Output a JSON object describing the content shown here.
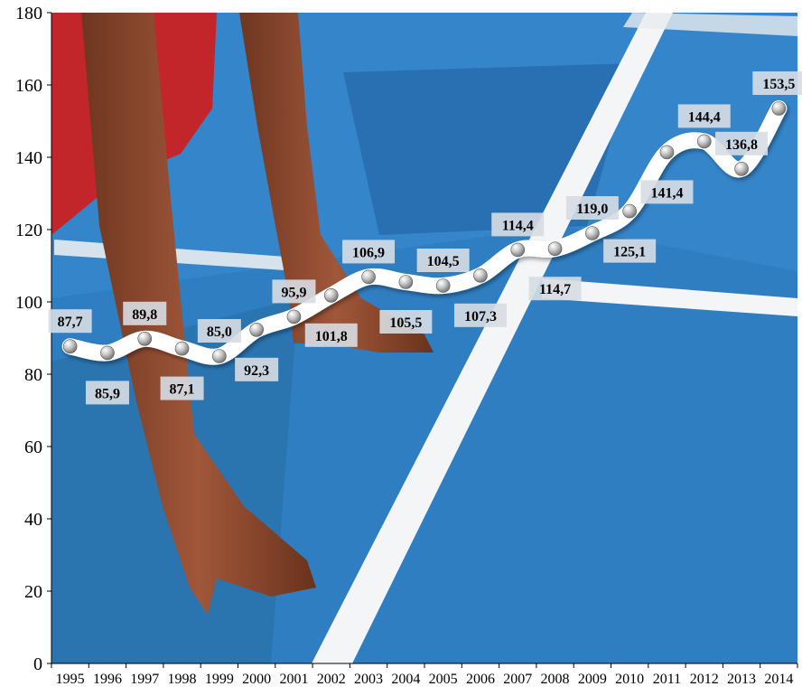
{
  "colors": {
    "track_blue": "#2f7ec1",
    "track_blue_dark": "#1f5f9e",
    "lane_white": "#f3f5f7",
    "skin": "#8a4a2a",
    "line": "#ffffff",
    "label_bg": "#d7dde3"
  },
  "chart_data": {
    "type": "line",
    "x": [
      "1995",
      "1996",
      "1997",
      "1998",
      "1999",
      "2000",
      "2001",
      "2002",
      "2003",
      "2004",
      "2005",
      "2006",
      "2007",
      "2008",
      "2009",
      "2010",
      "2011",
      "2012",
      "2013",
      "2014"
    ],
    "values": [
      87.7,
      85.9,
      89.8,
      87.1,
      85.0,
      92.3,
      95.9,
      101.8,
      106.9,
      105.5,
      104.5,
      107.3,
      114.4,
      114.7,
      119.0,
      125.1,
      141.4,
      144.4,
      136.8,
      153.5
    ],
    "data_labels": [
      "87,7",
      "85,9",
      "89,8",
      "87,1",
      "85,0",
      "92,3",
      "95,9",
      "101,8",
      "106,9",
      "105,5",
      "104,5",
      "107,3",
      "114,4",
      "114,7",
      "119,0",
      "125,1",
      "141,4",
      "144,4",
      "136,8",
      "153,5"
    ],
    "y_ticks": [
      "0",
      "20",
      "40",
      "60",
      "80",
      "100",
      "120",
      "140",
      "160",
      "180"
    ],
    "ylim": [
      0,
      180
    ],
    "grid": false,
    "background": "running-track photo (sprinter hands on blue track)"
  }
}
